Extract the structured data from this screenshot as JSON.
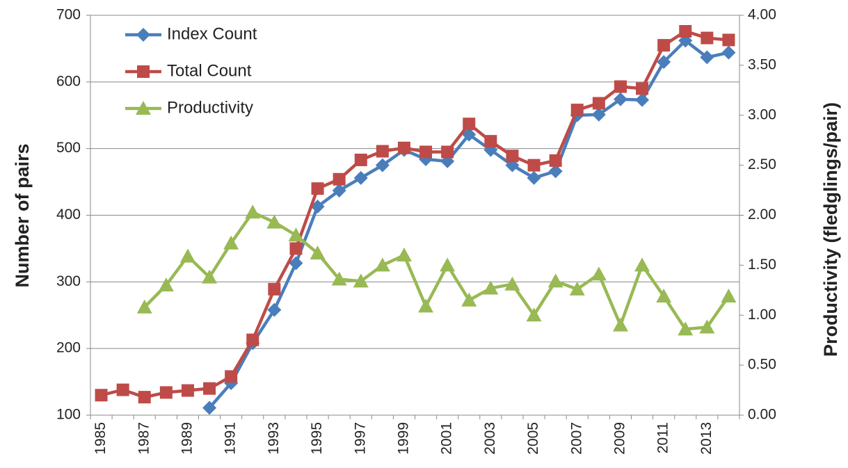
{
  "chart_data": {
    "type": "line",
    "categories": [
      "1985",
      null,
      "1987",
      null,
      "1989",
      null,
      "1991",
      null,
      "1993",
      null,
      "1995",
      null,
      "1997",
      null,
      "1999",
      null,
      "2001",
      null,
      "2003",
      null,
      "2005",
      null,
      "2007",
      null,
      "2009",
      null,
      "2011",
      null,
      "2013",
      null
    ],
    "series": [
      {
        "name": "Index Count",
        "color": "#4a7ebb",
        "marker": "diamond",
        "values": [
          null,
          null,
          null,
          null,
          null,
          111,
          148,
          208,
          258,
          328,
          413,
          437,
          456,
          475,
          498,
          484,
          481,
          521,
          498,
          475,
          456,
          466,
          550,
          551,
          574,
          573,
          630,
          662,
          637,
          644
        ]
      },
      {
        "name": "Total Count",
        "color": "#be4b48",
        "marker": "square",
        "values": [
          130,
          138,
          127,
          134,
          137,
          140,
          158,
          213,
          289,
          350,
          440,
          454,
          483,
          496,
          501,
          495,
          495,
          537,
          511,
          489,
          475,
          482,
          558,
          568,
          593,
          590,
          655,
          676,
          666,
          663
        ]
      },
      {
        "name": "Productivity",
        "color": "#98b954",
        "marker": "triangle",
        "axis": "y2",
        "values": [
          null,
          null,
          1.08,
          1.3,
          1.59,
          1.38,
          1.72,
          2.03,
          1.93,
          1.8,
          1.62,
          1.36,
          1.34,
          1.5,
          1.6,
          1.09,
          1.5,
          1.15,
          1.27,
          1.31,
          1.0,
          1.34,
          1.26,
          1.41,
          0.9,
          1.5,
          1.19,
          0.86,
          0.88,
          1.19
        ]
      }
    ],
    "ylabel": "Number of pairs",
    "y2label": "Productivity (fledglings/pair)",
    "ylim": [
      100,
      700
    ],
    "yticks": [
      100,
      200,
      300,
      400,
      500,
      600,
      700
    ],
    "y2lim": [
      0,
      4
    ],
    "y2ticks": [
      {
        "value": 0,
        "label": "0.00"
      },
      {
        "value": 0.5,
        "label": "0.50"
      },
      {
        "value": 1,
        "label": "1.00"
      },
      {
        "value": 1.5,
        "label": "1.50"
      },
      {
        "value": 2,
        "label": "2.00"
      },
      {
        "value": 2.5,
        "label": "2.50"
      },
      {
        "value": 3,
        "label": "3.00"
      },
      {
        "value": 3.5,
        "label": "3.50"
      },
      {
        "value": 4,
        "label": "4.00"
      }
    ],
    "grid": true,
    "legend": "upper left"
  }
}
